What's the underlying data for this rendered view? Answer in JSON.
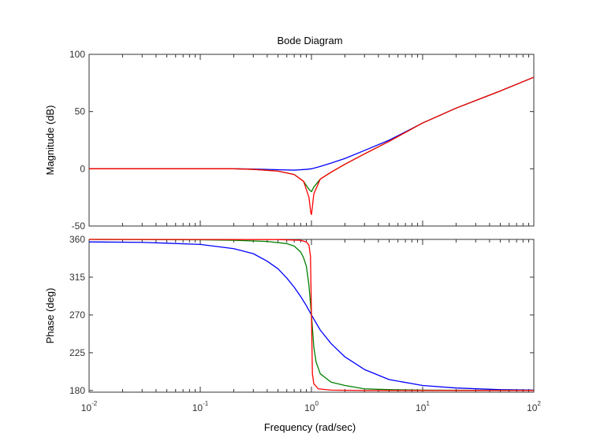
{
  "chart_data": {
    "type": "line",
    "title": "Bode Diagram",
    "xlabel": "Frequency  (rad/sec)",
    "x_scale": "log",
    "xlim": [
      0.01,
      100
    ],
    "x_ticks": [
      {
        "value": 0.01,
        "base": "10",
        "exp": "-2"
      },
      {
        "value": 0.1,
        "base": "10",
        "exp": "-1"
      },
      {
        "value": 1,
        "base": "10",
        "exp": "0"
      },
      {
        "value": 10,
        "base": "10",
        "exp": "1"
      },
      {
        "value": 100,
        "base": "10",
        "exp": "2"
      }
    ],
    "grid": false,
    "panels": [
      {
        "id": "magnitude",
        "ylabel": "Magnitude (dB)",
        "ylim": [
          -50,
          100
        ],
        "y_ticks": [
          -50,
          0,
          50,
          100
        ],
        "series": [
          {
            "color": "#0000ff",
            "points": [
              [
                0.01,
                0
              ],
              [
                0.1,
                0
              ],
              [
                0.2,
                0
              ],
              [
                0.3,
                -0.2
              ],
              [
                0.5,
                -0.8
              ],
              [
                0.7,
                -1.2
              ],
              [
                0.9,
                -0.5
              ],
              [
                1.0,
                0
              ],
              [
                1.2,
                2
              ],
              [
                1.5,
                5
              ],
              [
                2,
                9
              ],
              [
                3,
                16
              ],
              [
                5,
                25
              ],
              [
                10,
                40
              ],
              [
                20,
                53
              ],
              [
                50,
                68
              ],
              [
                100,
                80
              ]
            ]
          },
          {
            "color": "#008000",
            "points": [
              [
                0.01,
                0
              ],
              [
                0.2,
                0
              ],
              [
                0.3,
                -0.5
              ],
              [
                0.5,
                -2
              ],
              [
                0.7,
                -5
              ],
              [
                0.85,
                -11
              ],
              [
                0.95,
                -18
              ],
              [
                1.0,
                -20
              ],
              [
                1.05,
                -16
              ],
              [
                1.2,
                -9
              ],
              [
                1.5,
                -3
              ],
              [
                2,
                4
              ],
              [
                3,
                13
              ],
              [
                5,
                24
              ],
              [
                10,
                40
              ],
              [
                20,
                53
              ],
              [
                50,
                68
              ],
              [
                100,
                80
              ]
            ]
          },
          {
            "color": "#ff0000",
            "points": [
              [
                0.01,
                0
              ],
              [
                0.2,
                0
              ],
              [
                0.3,
                -0.5
              ],
              [
                0.5,
                -2
              ],
              [
                0.7,
                -5
              ],
              [
                0.85,
                -11
              ],
              [
                0.95,
                -25
              ],
              [
                0.985,
                -38
              ],
              [
                1.0,
                -40
              ],
              [
                1.015,
                -35
              ],
              [
                1.05,
                -22
              ],
              [
                1.2,
                -9
              ],
              [
                1.5,
                -3
              ],
              [
                2,
                4
              ],
              [
                3,
                13
              ],
              [
                5,
                24
              ],
              [
                10,
                40
              ],
              [
                20,
                53
              ],
              [
                50,
                68
              ],
              [
                100,
                80
              ]
            ]
          }
        ]
      },
      {
        "id": "phase",
        "ylabel": "Phase (deg)",
        "ylim": [
          178,
          360
        ],
        "y_ticks": [
          180,
          225,
          270,
          315,
          360
        ],
        "series": [
          {
            "color": "#0000ff",
            "points": [
              [
                0.01,
                357
              ],
              [
                0.03,
                356.5
              ],
              [
                0.05,
                355.5
              ],
              [
                0.1,
                354
              ],
              [
                0.2,
                349
              ],
              [
                0.3,
                343
              ],
              [
                0.4,
                334
              ],
              [
                0.5,
                325
              ],
              [
                0.6,
                314
              ],
              [
                0.7,
                303
              ],
              [
                0.8,
                292
              ],
              [
                0.9,
                281
              ],
              [
                1.0,
                270
              ],
              [
                1.2,
                252
              ],
              [
                1.5,
                236
              ],
              [
                2,
                220
              ],
              [
                3,
                205
              ],
              [
                5,
                193
              ],
              [
                10,
                186
              ],
              [
                20,
                183
              ],
              [
                50,
                181
              ],
              [
                100,
                180.5
              ]
            ]
          },
          {
            "color": "#008000",
            "points": [
              [
                0.01,
                360
              ],
              [
                0.1,
                359.5
              ],
              [
                0.2,
                359
              ],
              [
                0.4,
                357.5
              ],
              [
                0.6,
                355
              ],
              [
                0.7,
                352
              ],
              [
                0.8,
                345
              ],
              [
                0.85,
                338
              ],
              [
                0.9,
                328
              ],
              [
                0.95,
                305
              ],
              [
                1.0,
                270
              ],
              [
                1.05,
                232
              ],
              [
                1.1,
                214
              ],
              [
                1.2,
                200
              ],
              [
                1.5,
                190
              ],
              [
                2,
                186
              ],
              [
                3,
                182
              ],
              [
                5,
                181
              ],
              [
                10,
                180.5
              ],
              [
                100,
                180
              ]
            ]
          },
          {
            "color": "#ff0000",
            "points": [
              [
                0.01,
                360
              ],
              [
                0.5,
                359.8
              ],
              [
                0.8,
                359
              ],
              [
                0.9,
                357
              ],
              [
                0.95,
                353
              ],
              [
                0.98,
                340
              ],
              [
                1.0,
                270
              ],
              [
                1.02,
                200
              ],
              [
                1.05,
                188
              ],
              [
                1.15,
                182
              ],
              [
                1.5,
                180.5
              ],
              [
                3,
                180
              ],
              [
                100,
                180
              ]
            ]
          }
        ]
      }
    ]
  }
}
